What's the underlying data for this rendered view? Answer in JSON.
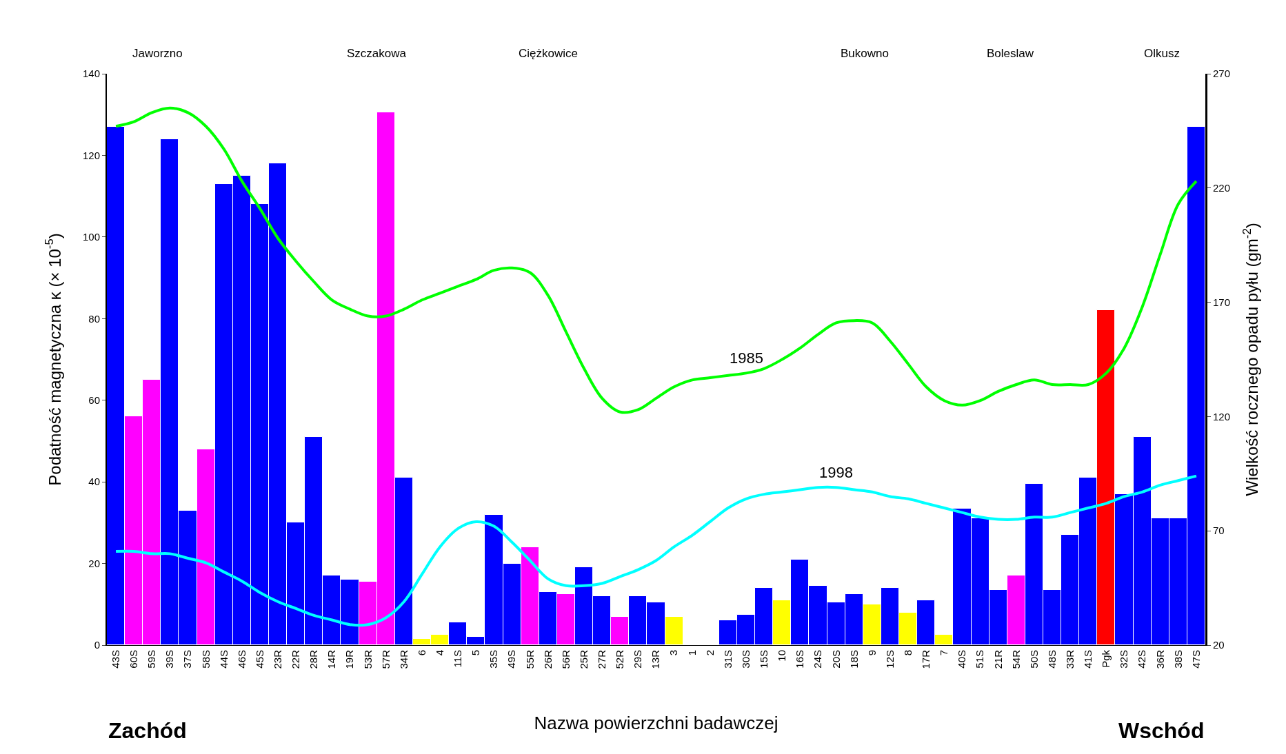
{
  "chart_data": {
    "type": "bar",
    "xlabel": "Nazwa powierzchni badawczej",
    "ylabel": "Podatność magnetyczna κ (× 10$^{-5}$)",
    "y2label": "Wielkość rocznego opadu pyłu (gm$^{-2}$)",
    "categories": [
      "43S",
      "60S",
      "59S",
      "39S",
      "37S",
      "58S",
      "44S",
      "46S",
      "45S",
      "23R",
      "22R",
      "28R",
      "14R",
      "19R",
      "53R",
      "57R",
      "34R",
      "6",
      "4",
      "11S",
      "5",
      "35S",
      "49S",
      "55R",
      "26R",
      "56R",
      "25R",
      "27R",
      "52R",
      "29S",
      "13R",
      "3",
      "1",
      "2",
      "31S",
      "30S",
      "15S",
      "10",
      "16S",
      "24S",
      "20S",
      "18S",
      "9",
      "12S",
      "8",
      "17R",
      "7",
      "40S",
      "51S",
      "21R",
      "54R",
      "50S",
      "48S",
      "33R",
      "41S",
      "Pgk",
      "32S",
      "42S",
      "36R",
      "38S",
      "47S"
    ],
    "series": [
      {
        "colors": [
          "#0000ff",
          "#ff00ff",
          "#ff00ff",
          "#0000ff",
          "#0000ff",
          "#ff00ff",
          "#0000ff",
          "#0000ff",
          "#0000ff",
          "#0000ff",
          "#0000ff",
          "#0000ff",
          "#0000ff",
          "#0000ff",
          "#ff00ff",
          "#ff00ff",
          "#0000ff",
          "#ffff00",
          "#ffff00",
          "#0000ff",
          "#0000ff",
          "#0000ff",
          "#0000ff",
          "#ff00ff",
          "#0000ff",
          "#ff00ff",
          "#0000ff",
          "#0000ff",
          "#ff00ff",
          "#0000ff",
          "#0000ff",
          "#ffff00",
          null,
          null,
          "#0000ff",
          "#0000ff",
          "#0000ff",
          "#ffff00",
          "#0000ff",
          "#0000ff",
          "#0000ff",
          "#0000ff",
          "#ffff00",
          "#0000ff",
          "#ffff00",
          "#0000ff",
          "#ffff00",
          "#0000ff",
          "#0000ff",
          "#0000ff",
          "#ff00ff",
          "#0000ff",
          "#0000ff",
          "#0000ff",
          "#0000ff",
          "#ff0000",
          "#0000ff",
          "#0000ff",
          "#0000ff",
          "#0000ff",
          "#0000ff"
        ],
        "values": [
          127,
          56,
          65,
          124,
          33,
          48,
          113,
          115,
          108,
          118,
          30,
          51,
          17,
          16,
          15.5,
          130.5,
          41,
          1.5,
          2.5,
          5.5,
          2,
          32,
          20,
          24,
          13,
          12.5,
          19,
          12,
          7,
          12,
          10.5,
          7,
          null,
          null,
          6,
          7.5,
          14,
          11,
          21,
          14.5,
          10.5,
          12.5,
          10,
          14,
          8,
          11,
          2.5,
          33.5,
          31,
          13.5,
          17,
          39.5,
          13.5,
          27,
          41,
          82,
          37,
          51,
          31,
          31,
          127
        ]
      },
      {
        "type": "line",
        "name": "1985",
        "color": "#00ff00",
        "axis": "y2",
        "values": [
          247,
          249,
          253,
          255,
          253,
          247,
          237,
          223,
          211,
          198,
          188,
          179,
          171,
          167,
          164,
          164,
          167,
          171,
          174,
          177,
          180,
          184,
          185,
          183,
          173,
          157,
          141,
          128,
          122,
          123,
          128,
          133,
          136,
          137,
          138,
          139,
          141,
          145,
          150,
          156,
          161,
          162,
          161,
          153,
          143,
          133,
          127,
          125,
          127,
          131,
          134,
          136,
          134,
          134,
          134,
          139,
          150,
          168,
          191,
          213,
          223
        ]
      },
      {
        "type": "line",
        "name": "1998",
        "color": "#00ffff",
        "axis": "y2",
        "values": [
          61,
          61,
          60,
          60,
          58,
          56,
          52,
          48,
          43,
          39,
          36,
          33,
          31,
          29,
          29,
          32,
          39,
          51,
          63,
          71,
          74,
          72,
          65,
          57,
          49,
          46,
          46,
          47,
          50,
          53,
          57,
          63,
          68,
          74,
          80,
          84,
          86,
          87,
          88,
          89,
          89,
          88,
          87,
          85,
          84,
          82,
          80,
          78,
          76,
          75,
          75,
          76,
          76,
          78,
          80,
          82,
          85,
          87,
          90,
          92,
          94
        ]
      }
    ],
    "ylim": [
      0,
      140
    ],
    "yticks": [
      0,
      20,
      40,
      60,
      80,
      100,
      120,
      140
    ],
    "y2lim": [
      20,
      270
    ],
    "y2ticks": [
      20,
      70,
      120,
      170,
      220,
      270
    ],
    "legend": false,
    "annotations": [
      "Jaworzno",
      "Szczakowa",
      "Ciężkowice",
      "Bukowno",
      "Boleslaw",
      "Olkusz",
      "Zachód",
      "Wschód"
    ]
  }
}
